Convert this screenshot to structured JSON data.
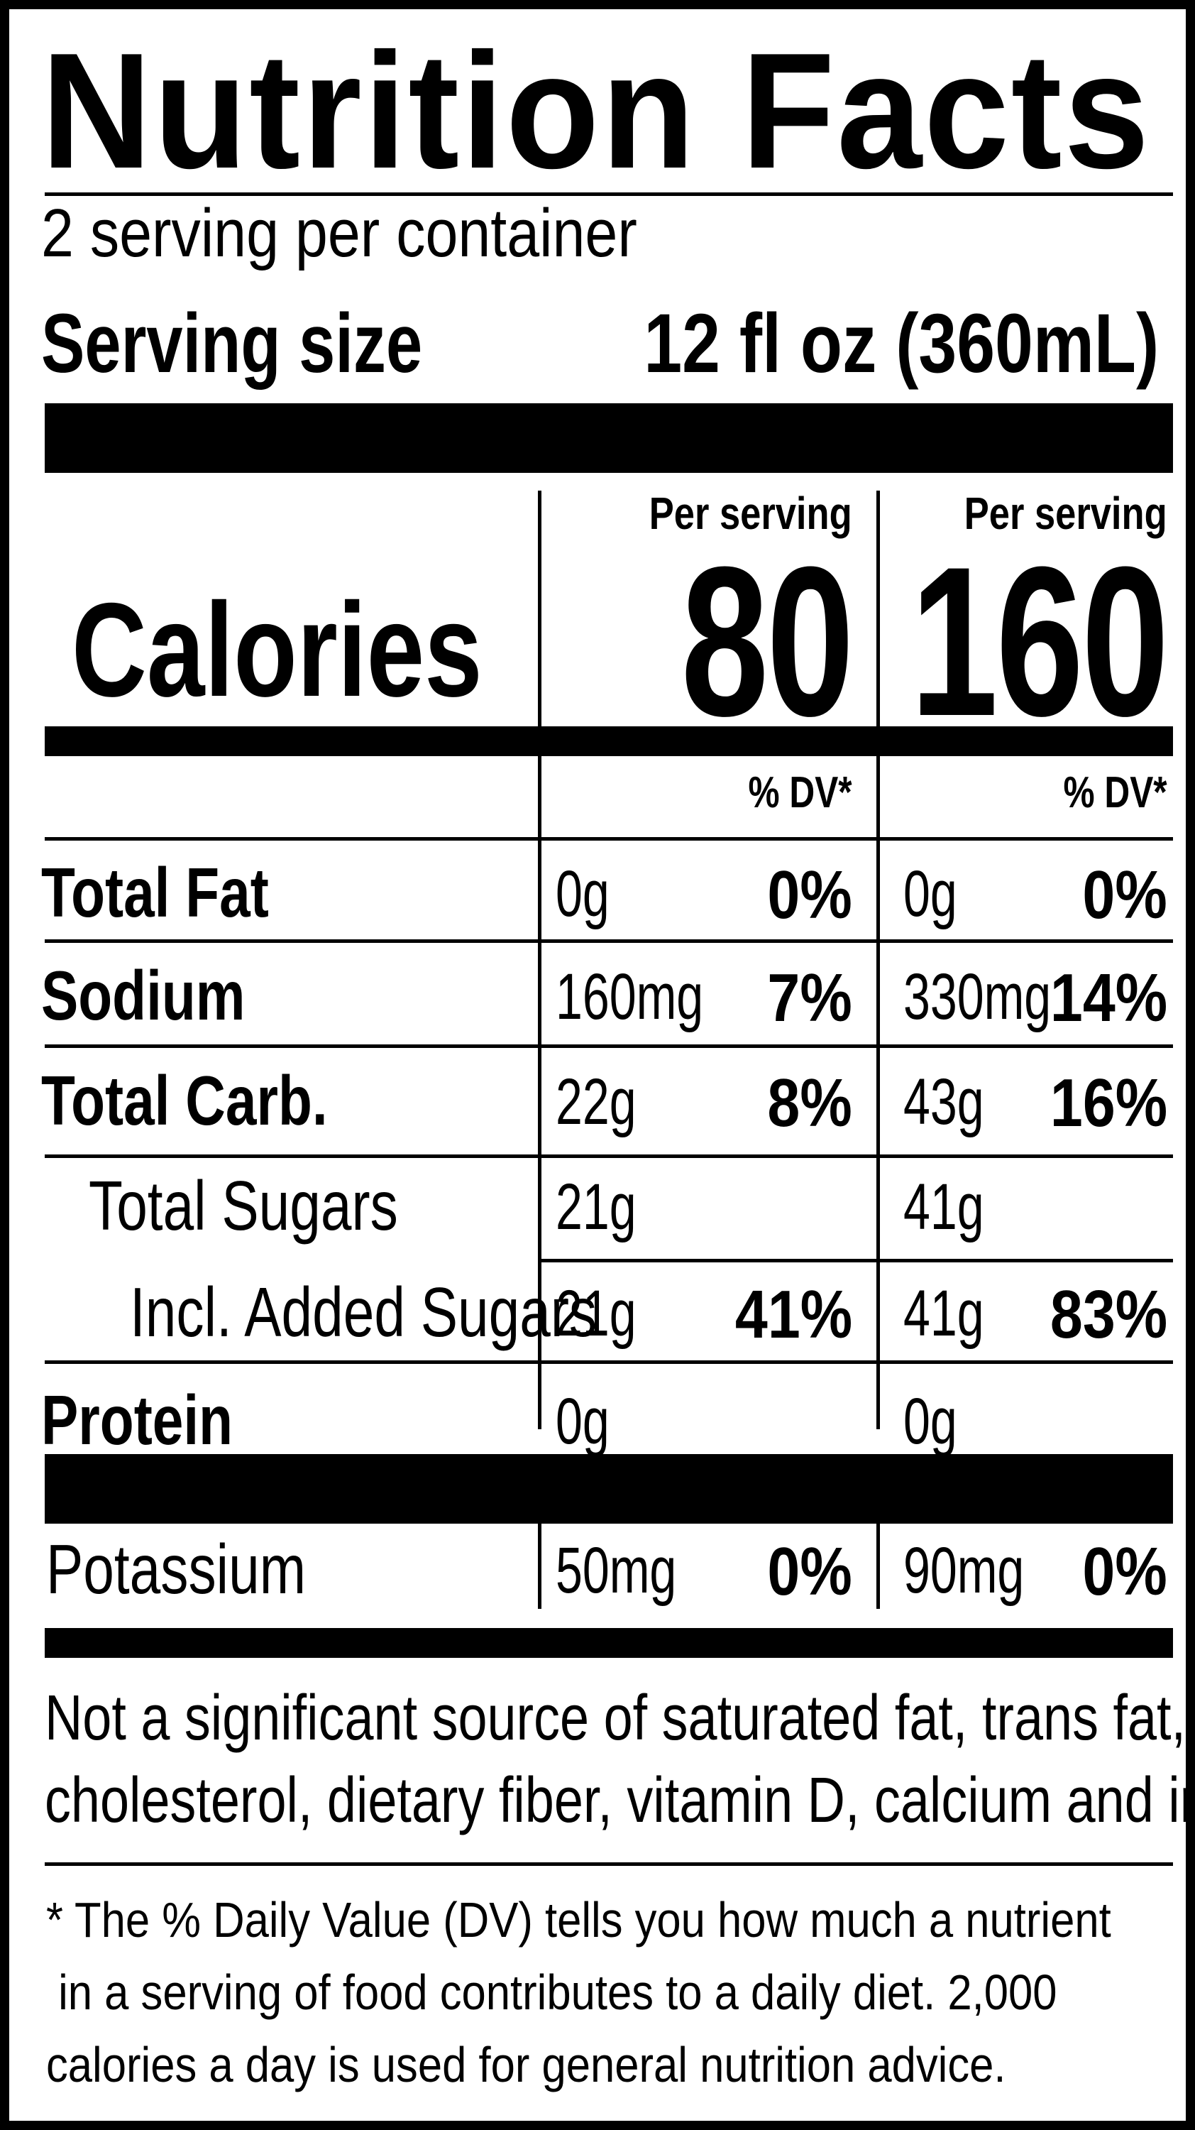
{
  "title": "Nutrition Facts",
  "servings_per_container": "2 serving per container",
  "serving_size": {
    "label": "Serving size",
    "value": "12 fl oz (360mL)"
  },
  "calories": {
    "label": "Calories",
    "columns": [
      {
        "header": "Per serving",
        "value": "80"
      },
      {
        "header": "Per serving",
        "value": "160"
      }
    ]
  },
  "dv_header": "% DV*",
  "nutrients": [
    {
      "name": "Total Fat",
      "style": "bold",
      "col1": {
        "amount": "0g",
        "dv": "0%"
      },
      "col2": {
        "amount": "0g",
        "dv": "0%"
      }
    },
    {
      "name": "Sodium",
      "style": "bold",
      "col1": {
        "amount": "160mg",
        "dv": "7%"
      },
      "col2": {
        "amount": "330mg",
        "dv": "14%"
      }
    },
    {
      "name": "Total Carb.",
      "style": "bold",
      "col1": {
        "amount": "22g",
        "dv": "8%"
      },
      "col2": {
        "amount": "43g",
        "dv": "16%"
      }
    },
    {
      "name": "Total Sugars",
      "style": "indent1",
      "col1": {
        "amount": "21g",
        "dv": ""
      },
      "col2": {
        "amount": "41g",
        "dv": ""
      }
    },
    {
      "name": "Incl. Added Sugars",
      "style": "indent2",
      "col1": {
        "amount": "21g",
        "dv": "41%"
      },
      "col2": {
        "amount": "41g",
        "dv": "83%"
      }
    },
    {
      "name": "Protein",
      "style": "bold",
      "col1": {
        "amount": "0g",
        "dv": ""
      },
      "col2": {
        "amount": "0g",
        "dv": ""
      }
    }
  ],
  "minerals": [
    {
      "name": "Potassium",
      "col1": {
        "amount": "50mg",
        "dv": "0%"
      },
      "col2": {
        "amount": "90mg",
        "dv": "0%"
      }
    }
  ],
  "not_significant": [
    "Not a significant source of saturated fat, trans fat,",
    "cholesterol, dietary fiber, vitamin D, calcium and iron."
  ],
  "footnote": [
    "* The % Daily Value (DV) tells you how much a nutrient",
    " in a serving of food contributes to a daily diet. 2,000",
    "calories a day is used for general nutrition advice."
  ]
}
